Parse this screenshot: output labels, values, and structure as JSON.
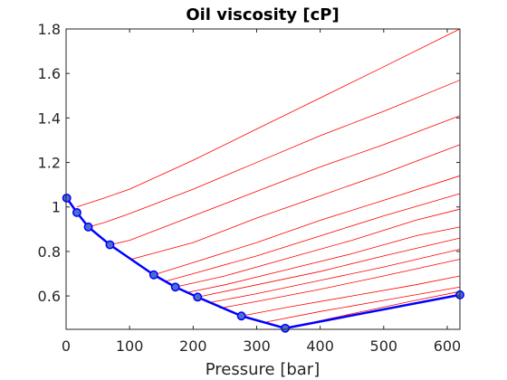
{
  "chart_data": {
    "type": "line",
    "title": "Oil viscosity [cP]",
    "xlabel": "Pressure [bar]",
    "ylabel": "",
    "xlim": [
      0,
      620
    ],
    "ylim": [
      0.45,
      1.8
    ],
    "xticks": [
      0,
      100,
      200,
      300,
      400,
      500,
      600
    ],
    "yticks": [
      0.6,
      0.8,
      1,
      1.2,
      1.4,
      1.6,
      1.8
    ],
    "xtick_labels": [
      "0",
      "100",
      "200",
      "300",
      "400",
      "500",
      "600"
    ],
    "ytick_labels": [
      "0.6",
      "0.8",
      "1",
      "1.2",
      "1.4",
      "1.6",
      "1.8"
    ],
    "grid": false,
    "colors": {
      "saturated_line": "#0000ff",
      "marker_fill": "#4a6fd0",
      "undersaturated_lines": "#ff0000",
      "axis": "#262626"
    },
    "series": [
      {
        "kind": "saturated",
        "x": [
          1,
          17,
          35,
          69,
          138,
          172,
          207,
          276,
          345,
          620
        ],
        "y": [
          1.04,
          0.975,
          0.91,
          0.83,
          0.695,
          0.64,
          0.595,
          0.51,
          0.455,
          0.605
        ],
        "markers": true
      },
      {
        "kind": "undersaturated",
        "x": [
          17,
          60,
          100,
          200,
          300,
          400,
          500,
          620
        ],
        "y": [
          1.0,
          1.04,
          1.08,
          1.21,
          1.35,
          1.49,
          1.63,
          1.8
        ]
      },
      {
        "kind": "undersaturated",
        "x": [
          35,
          60,
          100,
          200,
          300,
          400,
          500,
          620
        ],
        "y": [
          0.91,
          0.93,
          0.97,
          1.08,
          1.2,
          1.32,
          1.43,
          1.57
        ]
      },
      {
        "kind": "undersaturated",
        "x": [
          69,
          100,
          200,
          300,
          400,
          500,
          620
        ],
        "y": [
          0.83,
          0.85,
          0.96,
          1.07,
          1.18,
          1.28,
          1.41
        ]
      },
      {
        "kind": "undersaturated",
        "x": [
          103,
          200,
          300,
          400,
          500,
          620
        ],
        "y": [
          0.765,
          0.84,
          0.95,
          1.05,
          1.15,
          1.28
        ]
      },
      {
        "kind": "undersaturated",
        "x": [
          138,
          200,
          300,
          400,
          500,
          620
        ],
        "y": [
          0.695,
          0.75,
          0.84,
          0.94,
          1.03,
          1.14
        ]
      },
      {
        "kind": "undersaturated",
        "x": [
          155,
          200,
          300,
          400,
          500,
          620
        ],
        "y": [
          0.665,
          0.7,
          0.78,
          0.87,
          0.96,
          1.06
        ]
      },
      {
        "kind": "undersaturated",
        "x": [
          172,
          250,
          350,
          450,
          550,
          620
        ],
        "y": [
          0.64,
          0.69,
          0.77,
          0.85,
          0.94,
          0.99
        ]
      },
      {
        "kind": "undersaturated",
        "x": [
          190,
          250,
          350,
          450,
          550,
          620
        ],
        "y": [
          0.615,
          0.65,
          0.72,
          0.79,
          0.87,
          0.91
        ]
      },
      {
        "kind": "undersaturated",
        "x": [
          207,
          300,
          400,
          500,
          620
        ],
        "y": [
          0.595,
          0.65,
          0.71,
          0.78,
          0.86
        ]
      },
      {
        "kind": "undersaturated",
        "x": [
          225,
          300,
          400,
          500,
          620
        ],
        "y": [
          0.57,
          0.61,
          0.67,
          0.73,
          0.81
        ]
      },
      {
        "kind": "undersaturated",
        "x": [
          242,
          300,
          400,
          500,
          620
        ],
        "y": [
          0.545,
          0.575,
          0.63,
          0.69,
          0.765
        ]
      },
      {
        "kind": "undersaturated",
        "x": [
          276,
          350,
          450,
          550,
          620
        ],
        "y": [
          0.51,
          0.55,
          0.6,
          0.65,
          0.69
        ]
      },
      {
        "kind": "undersaturated",
        "x": [
          310,
          400,
          500,
          620
        ],
        "y": [
          0.48,
          0.53,
          0.58,
          0.64
        ]
      },
      {
        "kind": "undersaturated",
        "x": [
          345,
          450,
          550,
          620
        ],
        "y": [
          0.455,
          0.52,
          0.58,
          0.62
        ]
      }
    ]
  }
}
